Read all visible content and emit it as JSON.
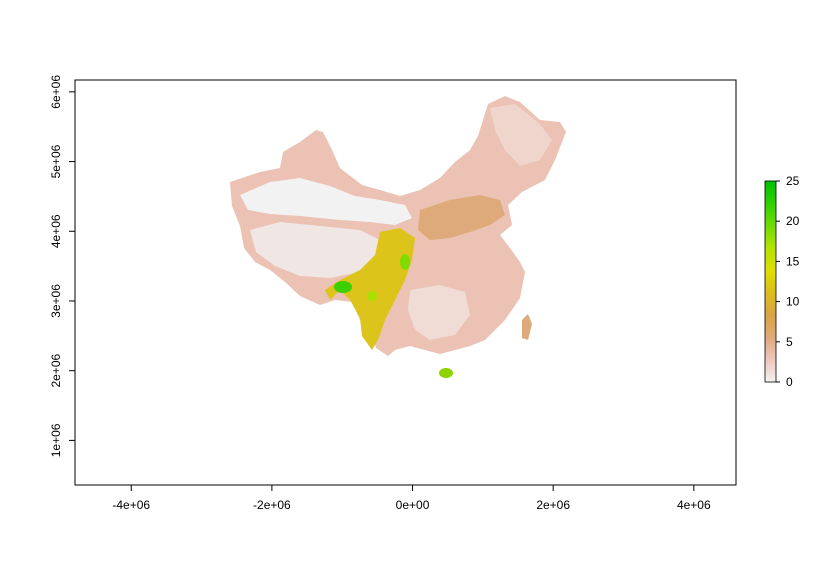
{
  "map": {
    "type": "raster-map",
    "x_axis": {
      "range": [
        -4800000,
        4600000
      ],
      "ticks": [
        {
          "value": -4000000,
          "label": "-4e+06"
        },
        {
          "value": -2000000,
          "label": "-2e+06"
        },
        {
          "value": 0,
          "label": "0e+00"
        },
        {
          "value": 2000000,
          "label": "2e+06"
        },
        {
          "value": 4000000,
          "label": "4e+06"
        }
      ]
    },
    "y_axis": {
      "range": [
        360000,
        6170000
      ],
      "ticks": [
        {
          "value": 1000000,
          "label": "1e+06"
        },
        {
          "value": 2000000,
          "label": "2e+06"
        },
        {
          "value": 3000000,
          "label": "3e+06"
        },
        {
          "value": 4000000,
          "label": "4e+06"
        },
        {
          "value": 5000000,
          "label": "5e+06"
        },
        {
          "value": 6000000,
          "label": "6e+06"
        }
      ]
    },
    "legend": {
      "range": [
        0,
        25
      ],
      "ticks": [
        {
          "value": 0,
          "label": "0"
        },
        {
          "value": 5,
          "label": "5"
        },
        {
          "value": 10,
          "label": "10"
        },
        {
          "value": 15,
          "label": "15"
        },
        {
          "value": 20,
          "label": "20"
        },
        {
          "value": 25,
          "label": "25"
        }
      ],
      "colors": [
        "#f2f2f2",
        "#eec6bb",
        "#dfaa7a",
        "#d9a543",
        "#dcbe1a",
        "#dede00",
        "#b4e200",
        "#6fdc00",
        "#2fd200",
        "#00c000"
      ],
      "placement": "right"
    }
  }
}
